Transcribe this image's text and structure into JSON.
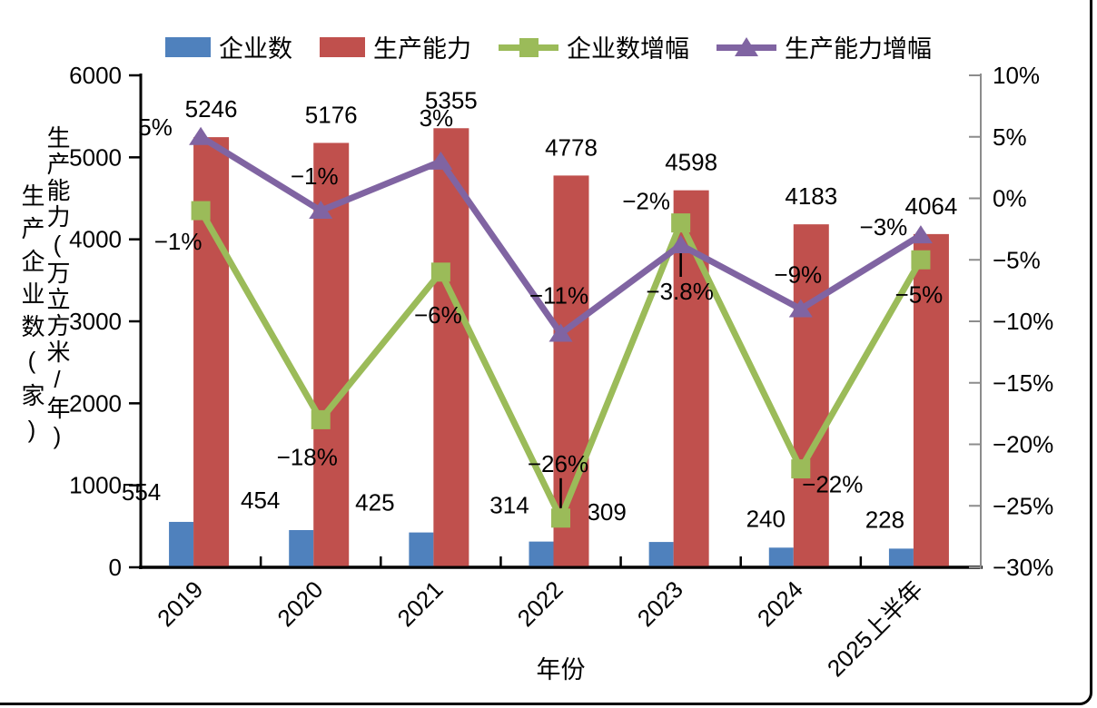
{
  "figure": {
    "background": "#FFFFFF",
    "frame_color": "#000000",
    "right_axis_color": "#8C8C8C"
  },
  "legend": {
    "items": [
      {
        "label": "企业数",
        "color": "#4F81BD",
        "marker": "rect"
      },
      {
        "label": "生产能力",
        "color": "#C0504D",
        "marker": "rect"
      },
      {
        "label": "企业数增幅",
        "color": "#9BBB59",
        "marker": "line-square"
      },
      {
        "label": "生产能力增幅",
        "color": "#8064A2",
        "marker": "line-triangle"
      }
    ]
  },
  "chart_data": {
    "type": "combo",
    "categories": [
      "2019",
      "2020",
      "2021",
      "2022",
      "2023",
      "2024",
      "2025上半年"
    ],
    "xlabel": "年份",
    "grid": false,
    "legend_position": "top",
    "left_axis": {
      "title_outer": "生产企业数(家)",
      "title_inner": "生产能力(万立方米/年)",
      "min": 0,
      "max": 6000,
      "step": 1000,
      "tick_labels": [
        "0",
        "1000",
        "2000",
        "3000",
        "4000",
        "5000",
        "6000"
      ]
    },
    "right_axis": {
      "min": -30,
      "max": 10,
      "step": 5,
      "tick_labels": [
        "10%",
        "5%",
        "0%",
        "−5%",
        "−10%",
        "−15%",
        "−20%",
        "−25%",
        "−30%"
      ]
    },
    "series": [
      {
        "name": "企业数",
        "slug": "enterprise-count",
        "chart_type": "bar",
        "axis": "left",
        "color": "#4F81BD",
        "values": [
          554,
          454,
          425,
          314,
          309,
          240,
          228
        ],
        "data_labels": [
          "554",
          "454",
          "425",
          "314",
          "309",
          "240",
          "228"
        ],
        "label_offsets": [
          [
            -44,
            -33
          ],
          [
            -45,
            -33
          ],
          [
            -51,
            -33
          ],
          [
            -35,
            -40
          ],
          [
            -60,
            -33
          ],
          [
            -17,
            -32
          ],
          [
            -18,
            -32
          ]
        ]
      },
      {
        "name": "生产能力",
        "slug": "production-capacity",
        "chart_type": "bar",
        "axis": "left",
        "color": "#C0504D",
        "values": [
          5246,
          5176,
          5355,
          4778,
          4598,
          4183,
          4064
        ],
        "data_labels": [
          "5246",
          "5176",
          "5355",
          "4778",
          "4598",
          "4183",
          "4064"
        ],
        "label_offsets": [
          [
            0,
            -31
          ],
          [
            0,
            -31
          ],
          [
            0,
            -31
          ],
          [
            0,
            -31
          ],
          [
            0,
            -31
          ],
          [
            0,
            -31
          ],
          [
            0,
            -31
          ]
        ]
      },
      {
        "name": "企业数增幅",
        "slug": "enterprise-count-growth",
        "chart_type": "line",
        "marker": "square",
        "axis": "right",
        "color": "#9BBB59",
        "values": [
          -1,
          -18,
          -6,
          -26,
          -2,
          -22,
          -5
        ],
        "data_labels": [
          "−1%",
          "−18%",
          "−6%",
          "−26%",
          "−2%",
          "−22%",
          "−5%"
        ],
        "label_offsets": [
          [
            -25,
            34
          ],
          [
            -15,
            41
          ],
          [
            -3,
            47
          ],
          [
            -3,
            -60
          ],
          [
            -38,
            -24
          ],
          [
            35,
            17
          ],
          [
            -2,
            38
          ]
        ],
        "leader_lines": [
          3
        ]
      },
      {
        "name": "生产能力增幅",
        "slug": "capacity-growth",
        "chart_type": "line",
        "marker": "triangle",
        "axis": "right",
        "color": "#8064A2",
        "values": [
          5,
          -1,
          3,
          -11,
          -3.8,
          -9,
          -3
        ],
        "data_labels": [
          "5%",
          "−1%",
          "3%",
          "−11%",
          "−3.8%",
          "−9%",
          "−3%"
        ],
        "label_offsets": [
          [
            -50,
            -11
          ],
          [
            -7,
            -38
          ],
          [
            -5,
            -48
          ],
          [
            -2,
            -42
          ],
          [
            -1,
            51
          ],
          [
            -3,
            -38
          ],
          [
            -41,
            -9
          ]
        ],
        "leader_lines": [
          4
        ]
      }
    ]
  }
}
